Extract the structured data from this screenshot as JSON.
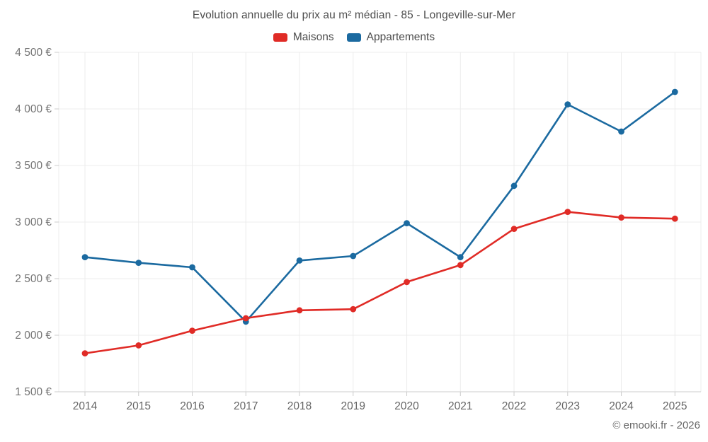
{
  "title": "Evolution annuelle du prix au m² médian - 85 - Longeville-sur-Mer",
  "footer": "© emooki.fr - 2026",
  "legend": [
    {
      "label": "Maisons",
      "color": "#e02b26"
    },
    {
      "label": "Appartements",
      "color": "#1b6aa0"
    }
  ],
  "chart_data": {
    "type": "line",
    "title": "Evolution annuelle du prix au m² médian - 85 - Longeville-sur-Mer",
    "x": [
      "2014",
      "2015",
      "2016",
      "2017",
      "2018",
      "2019",
      "2020",
      "2021",
      "2022",
      "2023",
      "2024",
      "2025"
    ],
    "series": [
      {
        "name": "Maisons",
        "color": "#e02b26",
        "values": [
          1840,
          1910,
          2040,
          2150,
          2220,
          2230,
          2470,
          2620,
          2940,
          3090,
          3040,
          3030
        ]
      },
      {
        "name": "Appartements",
        "color": "#1b6aa0",
        "values": [
          2690,
          2640,
          2600,
          2120,
          2660,
          2700,
          2990,
          2690,
          3320,
          4040,
          3800,
          4150
        ]
      }
    ],
    "xlabel": "",
    "ylabel": "",
    "ylim": [
      1500,
      4500
    ],
    "ytick_step": 500,
    "yticks": [
      1500,
      2000,
      2500,
      3000,
      3500,
      4000,
      4500
    ],
    "ytick_labels": [
      "1 500 €",
      "2 000 €",
      "2 500 €",
      "3 000 €",
      "3 500 €",
      "4 000 €",
      "4 500 €"
    ],
    "currency_suffix": " €",
    "grid": true,
    "legend_position": "top",
    "marker": "circle"
  },
  "colors": {
    "grid": "#ececec",
    "axis": "#cccccc",
    "ytick_text": "#757575",
    "xtick_text": "#666666",
    "title_text": "#4d4d4d",
    "background": "#ffffff"
  }
}
